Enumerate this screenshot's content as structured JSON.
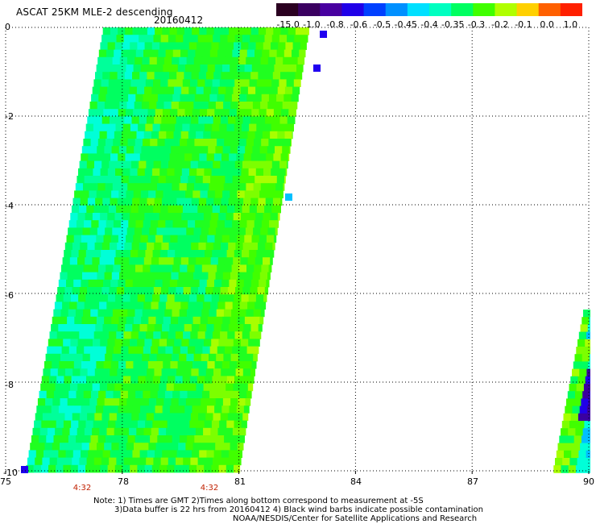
{
  "header": {
    "title": "ASCAT 25KM MLE-2 descending",
    "date": "20160412"
  },
  "colorbar": {
    "labels": [
      "-15.0",
      "-1.0",
      "-0.8",
      "-0.6",
      "-0.5",
      "-0.45",
      "-0.4",
      "-0.35",
      "-0.3",
      "-0.2",
      "-0.1",
      "0.0",
      "1.0"
    ],
    "colors": [
      "#2a0020",
      "#3a0060",
      "#4800a0",
      "#2000e8",
      "#0040ff",
      "#0090ff",
      "#00e0ff",
      "#00ffc0",
      "#00ff60",
      "#40ff00",
      "#b0ff00",
      "#ffd000",
      "#ff6000",
      "#ff2000"
    ]
  },
  "axes": {
    "y_ticks": [
      "0",
      "-2",
      "-4",
      "-6",
      "-8",
      "-10"
    ],
    "x_ticks": [
      "75",
      "78",
      "81",
      "84",
      "87",
      "90"
    ],
    "lat_range": [
      -10,
      0
    ],
    "lon_range": [
      75,
      90
    ]
  },
  "times": [
    "4:32",
    "4:32"
  ],
  "notes": {
    "line1": "Note: 1) Times are GMT 2)Times along bottom correspond to measurement at -5S",
    "line2": "3)Data buffer is 22 hrs from 20160412 4) Black wind barbs indicate possible contamination",
    "line3": "NOAA/NESDIS/Center for Satellite Applications and Research"
  },
  "chart_data": {
    "type": "heatmap",
    "title": "ASCAT 25KM MLE-2 descending",
    "date": "20160412",
    "x_range": [
      75,
      90
    ],
    "y_range": [
      -10,
      0
    ],
    "swaths": [
      {
        "lon_west_top": 77.5,
        "lon_east_top": 82.8,
        "lon_west_bottom": 75.5,
        "lon_east_bottom": 81.0,
        "lat_top": 0,
        "lat_bottom": -10,
        "dominant_range": "-0.35 to -0.2"
      },
      {
        "lon_west_top": 89.8,
        "lon_east_top": 90.0,
        "lon_west_bottom": 88.8,
        "lon_east_bottom": 90.0,
        "lat_top": -6.3,
        "lat_bottom": -10,
        "dominant_range": "-0.6 to -0.3"
      }
    ],
    "colorbar_range": [
      "-15.0",
      "1.0"
    ]
  }
}
